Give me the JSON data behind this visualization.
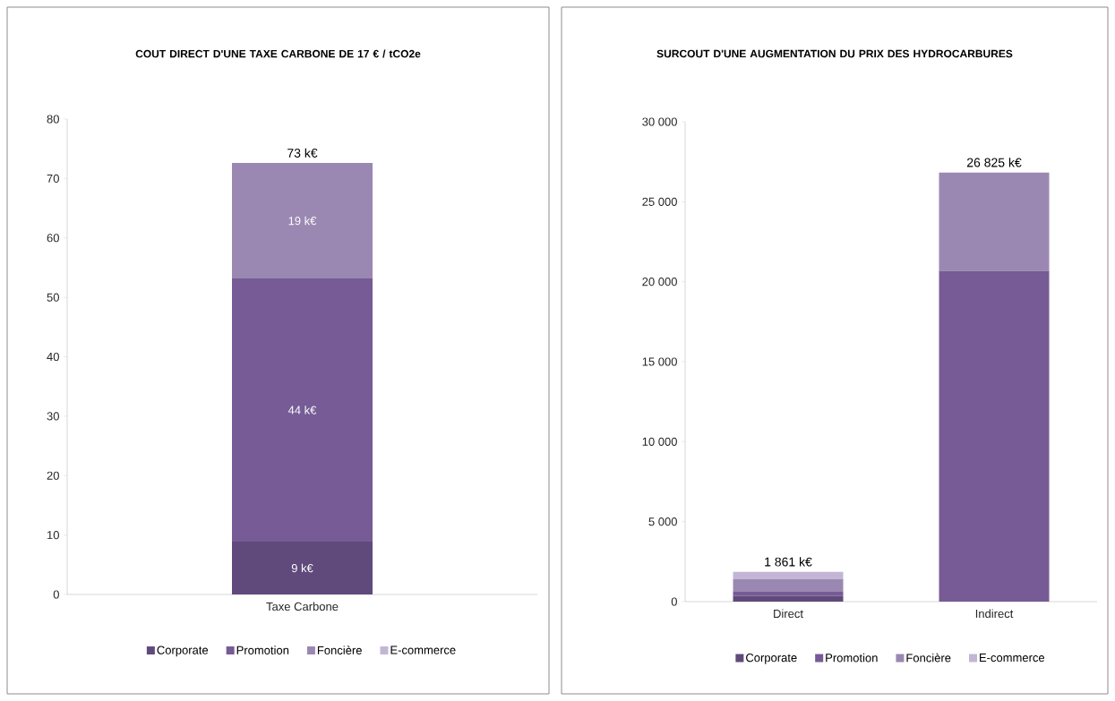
{
  "chart_data": [
    {
      "type": "bar",
      "title": "COUT DIRECT D'UNE TAXE CARBONE DE 17 € / tCO2e",
      "stacked": true,
      "legend": "bottom",
      "grid": false,
      "categories": [
        "Taxe Carbone"
      ],
      "ylim": [
        0,
        80
      ],
      "yticks": [
        0,
        10,
        20,
        30,
        40,
        50,
        60,
        70,
        80
      ],
      "series": [
        {
          "name": "Corporate",
          "color": "#604a7b",
          "values": [
            8.9
          ],
          "value_labels": [
            "9 k€"
          ]
        },
        {
          "name": "Promotion",
          "color": "#765b96",
          "values": [
            44.3
          ],
          "value_labels": [
            "44 k€"
          ]
        },
        {
          "name": "Foncière",
          "color": "#9b88b2",
          "values": [
            19.4
          ],
          "value_labels": [
            "19 k€"
          ]
        },
        {
          "name": "E-commerce",
          "color": "#c3b6d4",
          "values": [
            0
          ],
          "value_labels": [
            null
          ]
        }
      ],
      "totals": [
        "73 k€"
      ]
    },
    {
      "type": "bar",
      "title": "SURCOUT D'UNE AUGMENTATION DU PRIX DES HYDROCARBURES",
      "stacked": true,
      "legend": "bottom",
      "grid": false,
      "categories": [
        "Direct",
        "Indirect"
      ],
      "ylim": [
        0,
        30000
      ],
      "yticks": [
        0,
        {
          "value": 5000,
          "label": "5 000"
        },
        {
          "value": 10000,
          "label": "10 000"
        },
        {
          "value": 15000,
          "label": "15 000"
        },
        {
          "value": 20000,
          "label": "20 000"
        },
        {
          "value": 25000,
          "label": "25 000"
        },
        {
          "value": 30000,
          "label": "30 000"
        }
      ],
      "series": [
        {
          "name": "Corporate",
          "color": "#604a7b",
          "values": [
            361,
            0
          ]
        },
        {
          "name": "Promotion",
          "color": "#765b96",
          "values": [
            250,
            20675
          ]
        },
        {
          "name": "Foncière",
          "color": "#9b88b2",
          "values": [
            800,
            6150
          ]
        },
        {
          "name": "E-commerce",
          "color": "#c3b6d4",
          "values": [
            450,
            0
          ]
        }
      ],
      "totals": [
        "1 861 k€",
        "26 825 k€"
      ]
    }
  ]
}
